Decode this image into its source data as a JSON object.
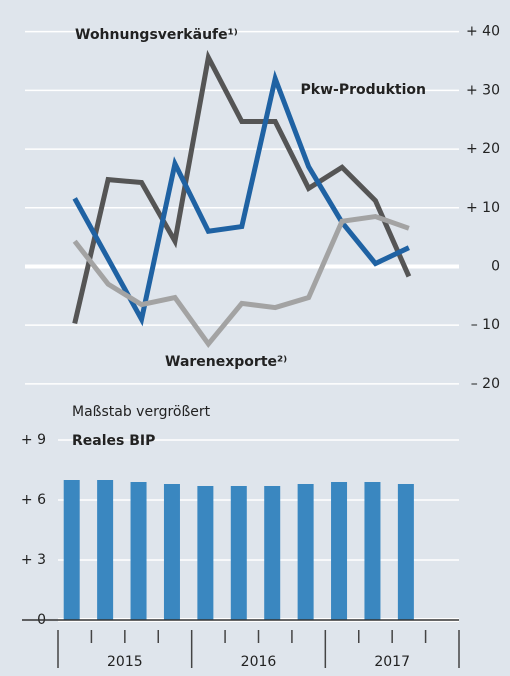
{
  "chart_data": [
    {
      "type": "line",
      "categories": [
        null,
        null,
        null,
        null,
        null,
        null,
        null,
        null,
        null,
        null,
        null
      ],
      "series": [
        {
          "name": "Wohnungsverkäufe¹⁾",
          "color": "#555555",
          "values": [
            -9.7,
            14.8,
            14.3,
            4.3,
            35.6,
            24.7,
            24.7,
            13.3,
            16.9,
            11.2,
            -1.7
          ]
        },
        {
          "name": "Pkw-Produktion",
          "color": "#1f62a3",
          "values": [
            11.6,
            1.3,
            -9.0,
            17.5,
            6.0,
            6.8,
            32.0,
            17.0,
            7.5,
            0.5,
            3.2
          ]
        },
        {
          "name": "Warenexporte²⁾",
          "color": "#a3a3a3",
          "values": [
            4.3,
            -3.0,
            -6.5,
            -5.3,
            -13.2,
            -6.3,
            -7.0,
            -5.3,
            7.7,
            8.5,
            6.5
          ]
        }
      ],
      "ylim": [
        -22,
        42.5
      ],
      "yticks": [
        {
          "value": -20,
          "label": "– 20"
        },
        {
          "value": -10,
          "label": "– 10"
        },
        0,
        {
          "value": 10,
          "label": "+ 10"
        },
        {
          "value": 20,
          "label": "+ 20"
        },
        {
          "value": 30,
          "label": "+ 30"
        },
        {
          "value": 40,
          "label": "+ 40"
        }
      ],
      "grid": true
    },
    {
      "type": "bar",
      "subtitle": "Maßstab vergrößert",
      "series_name": "Reales BIP",
      "categories": [
        null,
        null,
        null,
        null,
        null,
        null,
        null,
        null,
        null,
        null,
        null
      ],
      "years": [
        "2015",
        "2016",
        "2017"
      ],
      "values": [
        7.0,
        7.0,
        6.9,
        6.8,
        6.7,
        6.7,
        6.7,
        6.8,
        6.9,
        6.9,
        6.8
      ],
      "color": "#3a87c0",
      "ylim": [
        0,
        10
      ],
      "yticks": [
        0,
        {
          "value": 3,
          "label": "+ 3"
        },
        {
          "value": 6,
          "label": "+ 6"
        },
        {
          "value": 9,
          "label": "+ 9"
        }
      ],
      "grid": true
    }
  ]
}
